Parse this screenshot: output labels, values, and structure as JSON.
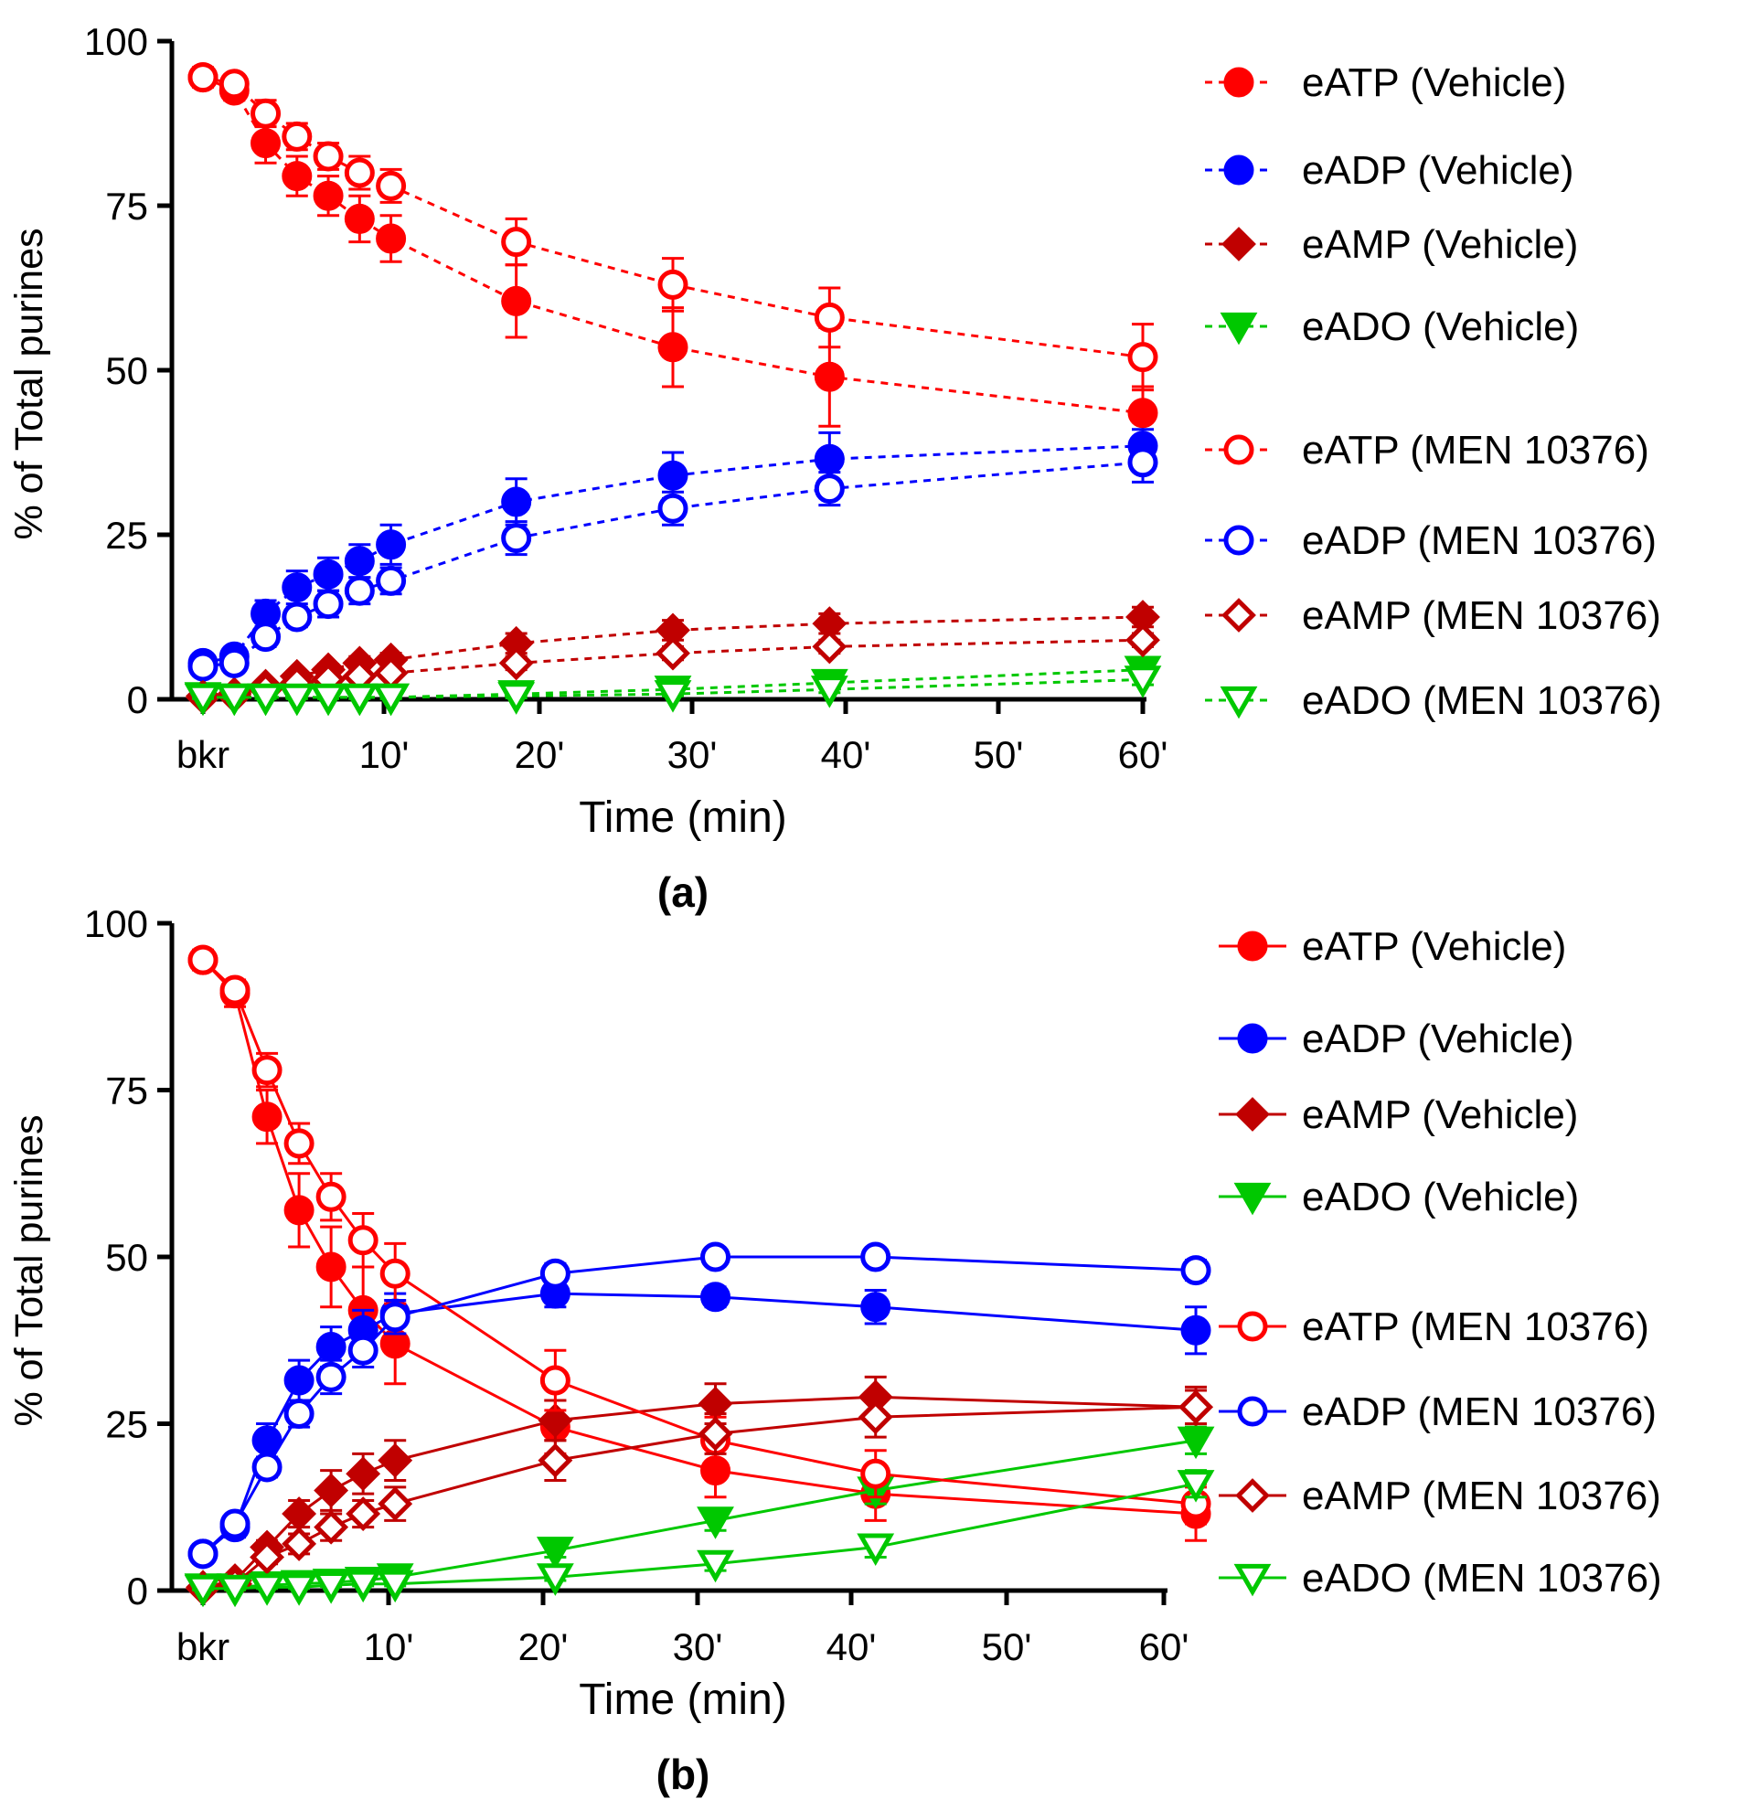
{
  "colors": {
    "atp": "#ff0000",
    "adp": "#0000ff",
    "amp": "#c00000",
    "ado": "#00c800",
    "axis": "#000000"
  },
  "chart_data": [
    {
      "type": "line",
      "panel_label": "(a)",
      "line_style": "dashed",
      "ylabel": "% of Total purines",
      "xlabel": "Time (min)",
      "ylim": [
        0,
        100
      ],
      "xlim": [
        0,
        60
      ],
      "yticks": [
        0,
        25,
        50,
        75,
        100
      ],
      "ytick_labels": [
        "0",
        "25",
        "50",
        "75",
        "100"
      ],
      "xticks": [
        10,
        20,
        30,
        40,
        50,
        60
      ],
      "xtick_labels": [
        "10'",
        "20'",
        "30'",
        "40'",
        "50'",
        "60'"
      ],
      "x_baseline_label": "bkr",
      "x": [
        0,
        2,
        4,
        6,
        8,
        10,
        12,
        20,
        30,
        40,
        60
      ],
      "series": [
        {
          "name": "eATP (Vehicle)",
          "color_key": "atp",
          "marker": "circle",
          "filled": true,
          "values": [
            94.5,
            92.5,
            84.5,
            79.5,
            76.5,
            73,
            70,
            60.5,
            53.5,
            49,
            43.5
          ],
          "errors": [
            1.5,
            1.5,
            3,
            3,
            3,
            3.5,
            3.5,
            5.5,
            6,
            7.5,
            4
          ]
        },
        {
          "name": "eADP (Vehicle)",
          "color_key": "adp",
          "marker": "circle",
          "filled": true,
          "values": [
            5.5,
            6.5,
            13,
            17,
            19,
            21,
            23.5,
            30,
            34,
            36.5,
            38.5
          ],
          "errors": [
            1,
            1,
            2,
            2.5,
            2.5,
            2.5,
            3,
            3.5,
            3.5,
            4,
            2.5
          ]
        },
        {
          "name": "eAMP (Vehicle)",
          "color_key": "amp",
          "marker": "diamond",
          "filled": true,
          "values": [
            0.5,
            0.8,
            2,
            3.5,
            4.5,
            5.5,
            6,
            8.5,
            10.5,
            11.5,
            12.5
          ],
          "errors": [
            0.3,
            0.3,
            0.5,
            0.5,
            0.8,
            1,
            1,
            1.5,
            1.5,
            1.5,
            1.5
          ]
        },
        {
          "name": "eADO (Vehicle)",
          "color_key": "ado",
          "marker": "triangle-down",
          "filled": true,
          "values": [
            0.5,
            0.3,
            0.3,
            0.3,
            0.3,
            0.3,
            0.3,
            0.8,
            1.5,
            2.5,
            4.5
          ],
          "errors": [
            0.2,
            0.2,
            0.2,
            0.2,
            0.2,
            0.2,
            0.2,
            0.3,
            0.5,
            0.8,
            1
          ]
        },
        {
          "name": "eATP (MEN 10376)",
          "color_key": "atp",
          "marker": "circle",
          "filled": false,
          "values": [
            94.5,
            93.5,
            89,
            85.5,
            82.5,
            80,
            78,
            69.5,
            63,
            58,
            52
          ],
          "errors": [
            1,
            1,
            2,
            2,
            2,
            2.5,
            2.5,
            3.5,
            4,
            4.5,
            5
          ]
        },
        {
          "name": "eADP (MEN 10376)",
          "color_key": "adp",
          "marker": "circle",
          "filled": false,
          "values": [
            5,
            5.5,
            9.5,
            12.5,
            14.5,
            16.5,
            18,
            24.5,
            29,
            32,
            36
          ],
          "errors": [
            1,
            1,
            1.5,
            1.5,
            2,
            2,
            2,
            2.5,
            2.5,
            2.5,
            3
          ]
        },
        {
          "name": "eAMP (MEN 10376)",
          "color_key": "amp",
          "marker": "diamond",
          "filled": false,
          "values": [
            0.3,
            0.5,
            1.5,
            2.5,
            3,
            3.5,
            4,
            5.5,
            7,
            8,
            9
          ],
          "errors": [
            0.2,
            0.2,
            0.3,
            0.5,
            0.5,
            0.5,
            0.5,
            1,
            1,
            1,
            1
          ]
        },
        {
          "name": "eADO (MEN 10376)",
          "color_key": "ado",
          "marker": "triangle-down",
          "filled": false,
          "values": [
            0.3,
            0.3,
            0.3,
            0.3,
            0.3,
            0.3,
            0.3,
            0.5,
            0.8,
            1.5,
            3
          ],
          "errors": [
            0.2,
            0.2,
            0.2,
            0.2,
            0.2,
            0.2,
            0.2,
            0.3,
            0.3,
            0.5,
            0.8
          ]
        }
      ]
    },
    {
      "type": "line",
      "panel_label": "(b)",
      "line_style": "solid",
      "ylabel": "% of Total purines",
      "xlabel": "Time (min)",
      "ylim": [
        0,
        100
      ],
      "xlim": [
        0,
        60
      ],
      "yticks": [
        0,
        25,
        50,
        75,
        100
      ],
      "ytick_labels": [
        "0",
        "25",
        "50",
        "75",
        "100"
      ],
      "xticks": [
        10,
        20,
        30,
        40,
        50,
        60
      ],
      "xtick_labels": [
        "10'",
        "20'",
        "30'",
        "40'",
        "50'",
        "60'"
      ],
      "x_baseline_label": "bkr",
      "x": [
        0,
        2,
        4,
        6,
        8,
        10,
        12,
        22,
        32,
        42,
        62
      ],
      "series": [
        {
          "name": "eATP (Vehicle)",
          "color_key": "atp",
          "marker": "circle",
          "filled": true,
          "values": [
            94.5,
            89.5,
            71,
            57,
            48.5,
            42,
            37,
            24.5,
            18,
            14.5,
            11.5
          ],
          "errors": [
            1.5,
            2,
            4,
            5.5,
            6,
            6.5,
            6,
            4,
            4,
            4,
            4
          ]
        },
        {
          "name": "eADP (Vehicle)",
          "color_key": "adp",
          "marker": "circle",
          "filled": true,
          "values": [
            5.5,
            9.5,
            22.5,
            31.5,
            36.5,
            39,
            41.5,
            44.5,
            44,
            42.5,
            39
          ],
          "errors": [
            1,
            1.5,
            2.5,
            3,
            3,
            3,
            3,
            2,
            1.5,
            2.5,
            3.5
          ]
        },
        {
          "name": "eAMP (Vehicle)",
          "color_key": "amp",
          "marker": "diamond",
          "filled": true,
          "values": [
            0.5,
            1.5,
            6.5,
            11.5,
            15,
            17.5,
            19.5,
            25.5,
            28,
            29,
            27.5
          ],
          "errors": [
            0.3,
            0.5,
            1,
            2,
            3,
            3,
            3,
            3,
            3,
            3,
            3
          ]
        },
        {
          "name": "eADO (Vehicle)",
          "color_key": "ado",
          "marker": "triangle-down",
          "filled": true,
          "values": [
            0.5,
            0.5,
            0.8,
            1,
            1.2,
            1.5,
            2,
            6,
            10.5,
            15,
            22.5
          ],
          "errors": [
            0.2,
            0.2,
            0.3,
            0.3,
            0.3,
            0.3,
            0.5,
            1,
            1.5,
            2,
            2
          ]
        },
        {
          "name": "eATP (MEN 10376)",
          "color_key": "atp",
          "marker": "circle",
          "filled": false,
          "values": [
            94.5,
            90,
            78,
            67,
            59,
            52.5,
            47.5,
            31.5,
            22.5,
            17.5,
            13
          ],
          "errors": [
            1,
            1.5,
            2.5,
            3,
            3.5,
            4,
            4.5,
            4.5,
            3.5,
            3.5,
            3
          ]
        },
        {
          "name": "eADP (MEN 10376)",
          "color_key": "adp",
          "marker": "circle",
          "filled": false,
          "values": [
            5.5,
            10,
            18.5,
            26.5,
            32,
            36,
            41,
            47.5,
            50,
            50,
            48
          ],
          "errors": [
            1,
            1,
            1.5,
            2,
            2.5,
            2.5,
            2.5,
            1.5,
            1,
            1,
            1.5
          ]
        },
        {
          "name": "eAMP (MEN 10376)",
          "color_key": "amp",
          "marker": "diamond",
          "filled": false,
          "values": [
            0.3,
            1,
            5,
            7,
            9.5,
            11.5,
            13,
            19.5,
            23.5,
            26,
            27.5
          ],
          "errors": [
            0.2,
            0.3,
            1,
            1.5,
            2,
            2,
            2.5,
            3,
            3,
            3,
            2.5
          ]
        },
        {
          "name": "eADO (MEN 10376)",
          "color_key": "ado",
          "marker": "triangle-down",
          "filled": false,
          "values": [
            0.3,
            0.3,
            0.5,
            0.5,
            0.8,
            1,
            1,
            2,
            4,
            6.5,
            16
          ],
          "errors": [
            0.2,
            0.2,
            0.2,
            0.2,
            0.2,
            0.3,
            0.3,
            0.5,
            1,
            1.5,
            2
          ]
        }
      ]
    }
  ]
}
